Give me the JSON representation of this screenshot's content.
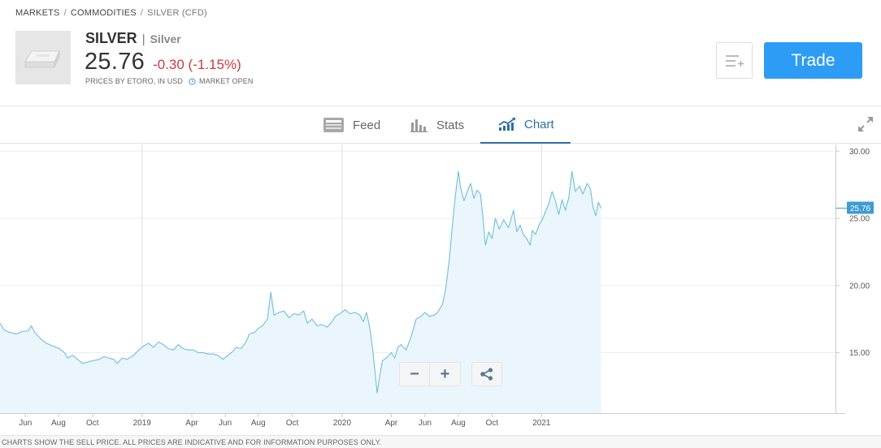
{
  "breadcrumb": {
    "items": [
      "MARKETS",
      "COMMODITIES",
      "SILVER (CFD)"
    ],
    "separator": "/"
  },
  "instrument": {
    "logo_icon": "silver-bar-icon",
    "symbol": "SILVER",
    "name_separator": "|",
    "full_name": "Silver",
    "price": "25.76",
    "change": "-0.30 (-1.15%)",
    "prices_note": "PRICES BY ETORO, IN USD",
    "market_status": "MARKET OPEN",
    "change_color": "#d0393d"
  },
  "actions": {
    "watchlist_icon": "add-to-watchlist-icon",
    "trade_label": "Trade",
    "trade_color": "#2d9cf4"
  },
  "tabs": [
    {
      "label": "Feed",
      "icon": "feed-icon",
      "active": false
    },
    {
      "label": "Stats",
      "icon": "stats-icon",
      "active": false
    },
    {
      "label": "Chart",
      "icon": "chart-icon",
      "active": true
    }
  ],
  "chart_controls": {
    "zoom_out_label": "−",
    "zoom_in_label": "+",
    "share_icon": "share-icon",
    "expand_icon": "expand-icon"
  },
  "chart_data": {
    "type": "area",
    "title": "",
    "xlabel": "",
    "ylabel": "",
    "ylim": [
      10.5,
      30.5
    ],
    "xlim": [
      0.0,
      25.3
    ],
    "y_ticks": [
      {
        "value": 15,
        "label": "15.00"
      },
      {
        "value": 20,
        "label": "20.00"
      },
      {
        "value": 25,
        "label": "25.00"
      },
      {
        "value": 30,
        "label": "30.00"
      }
    ],
    "x_ticks": [
      {
        "value": 0.77,
        "label": "Jun"
      },
      {
        "value": 1.77,
        "label": "Aug"
      },
      {
        "value": 2.8,
        "label": "Oct"
      },
      {
        "value": 4.3,
        "label": "2019"
      },
      {
        "value": 5.81,
        "label": "Apr"
      },
      {
        "value": 6.82,
        "label": "Jun"
      },
      {
        "value": 7.82,
        "label": "Aug"
      },
      {
        "value": 8.85,
        "label": "Oct"
      },
      {
        "value": 10.36,
        "label": "2020"
      },
      {
        "value": 11.85,
        "label": "Apr"
      },
      {
        "value": 12.87,
        "label": "Jun"
      },
      {
        "value": 13.88,
        "label": "Aug"
      },
      {
        "value": 14.9,
        "label": "Oct"
      },
      {
        "value": 16.4,
        "label": "2021"
      }
    ],
    "vertical_gridlines": [
      4.3,
      10.36,
      16.4
    ],
    "last_price_label": "25.76",
    "last_price_value": 25.76,
    "line_color": "#6fbfda",
    "fill_color": "#eaf5fc",
    "series": [
      {
        "values": [
          [
            0.0,
            17.2
          ],
          [
            0.12,
            16.7
          ],
          [
            0.3,
            16.5
          ],
          [
            0.5,
            16.4
          ],
          [
            0.7,
            16.6
          ],
          [
            0.85,
            16.6
          ],
          [
            0.95,
            17.0
          ],
          [
            1.05,
            16.5
          ],
          [
            1.25,
            16.0
          ],
          [
            1.4,
            15.7
          ],
          [
            1.6,
            15.5
          ],
          [
            1.8,
            15.3
          ],
          [
            1.95,
            15.0
          ],
          [
            2.05,
            14.6
          ],
          [
            2.2,
            14.8
          ],
          [
            2.35,
            14.5
          ],
          [
            2.5,
            14.2
          ],
          [
            2.65,
            14.3
          ],
          [
            2.8,
            14.4
          ],
          [
            3.0,
            14.5
          ],
          [
            3.15,
            14.7
          ],
          [
            3.3,
            14.6
          ],
          [
            3.45,
            14.5
          ],
          [
            3.55,
            14.2
          ],
          [
            3.7,
            14.6
          ],
          [
            3.85,
            14.5
          ],
          [
            4.05,
            14.8
          ],
          [
            4.2,
            15.2
          ],
          [
            4.35,
            15.5
          ],
          [
            4.5,
            15.7
          ],
          [
            4.65,
            15.4
          ],
          [
            4.8,
            15.8
          ],
          [
            4.95,
            15.6
          ],
          [
            5.1,
            15.3
          ],
          [
            5.25,
            15.2
          ],
          [
            5.4,
            15.6
          ],
          [
            5.55,
            15.3
          ],
          [
            5.7,
            15.2
          ],
          [
            5.85,
            15.2
          ],
          [
            6.0,
            15.0
          ],
          [
            6.15,
            15.0
          ],
          [
            6.3,
            14.9
          ],
          [
            6.45,
            14.9
          ],
          [
            6.6,
            14.8
          ],
          [
            6.75,
            14.5
          ],
          [
            6.9,
            14.8
          ],
          [
            7.05,
            15.1
          ],
          [
            7.15,
            15.4
          ],
          [
            7.3,
            15.3
          ],
          [
            7.45,
            15.8
          ],
          [
            7.55,
            16.4
          ],
          [
            7.7,
            16.5
          ],
          [
            7.82,
            16.8
          ],
          [
            7.95,
            17.0
          ],
          [
            8.1,
            17.5
          ],
          [
            8.2,
            19.5
          ],
          [
            8.3,
            17.8
          ],
          [
            8.45,
            18.0
          ],
          [
            8.6,
            18.1
          ],
          [
            8.75,
            17.6
          ],
          [
            8.9,
            17.9
          ],
          [
            9.05,
            17.8
          ],
          [
            9.2,
            18.1
          ],
          [
            9.3,
            17.2
          ],
          [
            9.45,
            17.5
          ],
          [
            9.6,
            17.0
          ],
          [
            9.75,
            17.1
          ],
          [
            9.9,
            16.9
          ],
          [
            10.05,
            17.3
          ],
          [
            10.15,
            17.7
          ],
          [
            10.3,
            17.9
          ],
          [
            10.45,
            18.2
          ],
          [
            10.6,
            17.9
          ],
          [
            10.75,
            18.0
          ],
          [
            10.9,
            17.8
          ],
          [
            11.0,
            17.3
          ],
          [
            11.1,
            18.0
          ],
          [
            11.2,
            16.8
          ],
          [
            11.28,
            15.4
          ],
          [
            11.36,
            13.5
          ],
          [
            11.42,
            12.0
          ],
          [
            11.5,
            13.3
          ],
          [
            11.58,
            14.4
          ],
          [
            11.7,
            14.6
          ],
          [
            11.85,
            15.0
          ],
          [
            11.95,
            14.6
          ],
          [
            12.05,
            15.4
          ],
          [
            12.15,
            15.6
          ],
          [
            12.3,
            15.2
          ],
          [
            12.45,
            16.2
          ],
          [
            12.6,
            17.5
          ],
          [
            12.75,
            17.7
          ],
          [
            12.87,
            18.0
          ],
          [
            13.0,
            17.7
          ],
          [
            13.15,
            17.8
          ],
          [
            13.25,
            18.0
          ],
          [
            13.4,
            18.6
          ],
          [
            13.5,
            19.8
          ],
          [
            13.6,
            21.8
          ],
          [
            13.68,
            24.0
          ],
          [
            13.78,
            26.5
          ],
          [
            13.88,
            28.5
          ],
          [
            13.95,
            27.3
          ],
          [
            14.05,
            26.3
          ],
          [
            14.15,
            27.0
          ],
          [
            14.25,
            27.6
          ],
          [
            14.35,
            26.5
          ],
          [
            14.45,
            27.1
          ],
          [
            14.55,
            26.8
          ],
          [
            14.62,
            25.2
          ],
          [
            14.7,
            23.0
          ],
          [
            14.8,
            24.0
          ],
          [
            14.9,
            23.5
          ],
          [
            15.0,
            25.0
          ],
          [
            15.12,
            24.2
          ],
          [
            15.25,
            24.9
          ],
          [
            15.4,
            24.3
          ],
          [
            15.55,
            25.6
          ],
          [
            15.65,
            24.0
          ],
          [
            15.75,
            24.5
          ],
          [
            15.85,
            23.8
          ],
          [
            15.95,
            23.5
          ],
          [
            16.05,
            23.0
          ],
          [
            16.12,
            24.1
          ],
          [
            16.22,
            23.8
          ],
          [
            16.32,
            24.5
          ],
          [
            16.42,
            24.9
          ],
          [
            16.52,
            25.5
          ],
          [
            16.62,
            26.1
          ],
          [
            16.72,
            27.0
          ],
          [
            16.82,
            26.3
          ],
          [
            16.92,
            25.3
          ],
          [
            17.02,
            26.4
          ],
          [
            17.12,
            25.6
          ],
          [
            17.22,
            26.5
          ],
          [
            17.32,
            28.5
          ],
          [
            17.42,
            27.0
          ],
          [
            17.55,
            27.4
          ],
          [
            17.65,
            26.8
          ],
          [
            17.78,
            27.6
          ],
          [
            17.88,
            27.2
          ],
          [
            17.96,
            25.8
          ],
          [
            18.04,
            25.2
          ],
          [
            18.12,
            26.2
          ],
          [
            18.2,
            25.76
          ]
        ]
      }
    ]
  },
  "disclaimer": "CHARTS SHOW THE SELL PRICE. ALL PRICES ARE INDICATIVE AND FOR INFORMATION PURPOSES ONLY."
}
